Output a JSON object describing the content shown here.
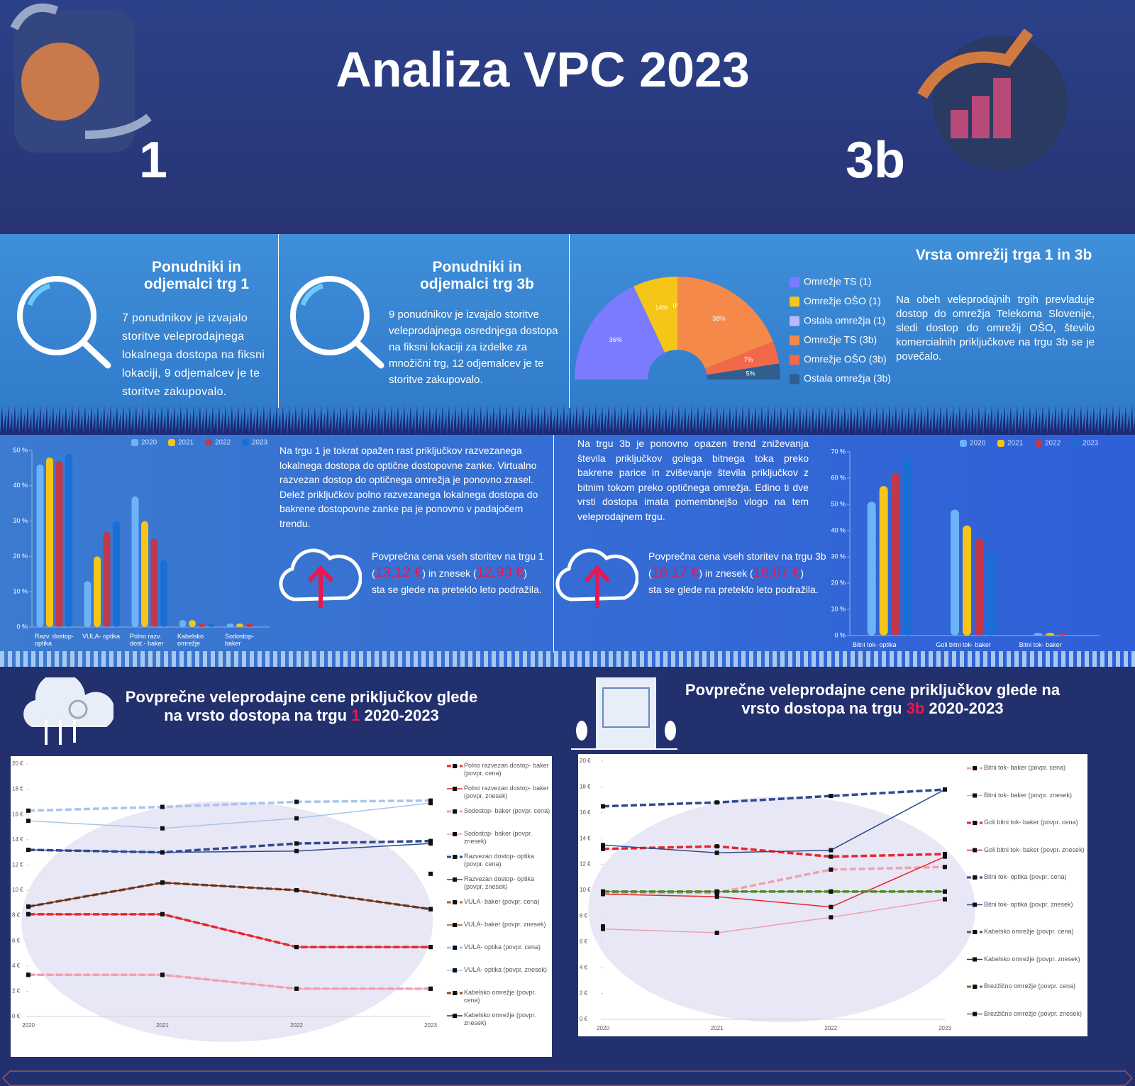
{
  "header": {
    "title": "Analiza VPC 2023",
    "left_label": "1",
    "right_label": "3b"
  },
  "panels": [
    {
      "title": "Ponudniki in odjemalci trg 1",
      "text": "7 ponudnikov je izvajalo storitve veleprodajnega lokalnega dostopa na fiksni lokaciji, 9 odjemalcev je te storitve zakupovalo."
    },
    {
      "title": "Ponudniki in odjemalci trg 3b",
      "text": "9 ponudnikov je izvajalo storitve veleprodajnega osrednjega dostopa na fiksni lokaciji za izdelke za množični trg, 12 odjemalcev je te storitve zakupovalo."
    }
  ],
  "network": {
    "text": "Na obeh veleprodajnih trgih prevladuje dostop do omrežja Telekoma Slovenije, sledi dostop do omrežij OŠO, število komercialnih priključkove na trgu 3b se je povečalo."
  },
  "markets": [
    {
      "text": "Na trgu 1 je tokrat opažen rast priključkov razvezanega lokalnega dostopa do optične dostopovne zanke. Virtualno razvezan dostop do optičnega omrežja je ponovno zrasel. Delež priključkov polno razvezanega lokalnega dostopa do bakrene dostopovne zanke pa je ponovno v padajočem trendu.",
      "price_intro": "Povprečna cena vseh storitev na trgu 1",
      "price_parts": [
        "(",
        "13,12 €",
        ") in znesek (",
        "12,93 €",
        ")"
      ],
      "price_outro": "sta se glede na preteklo leto podražila."
    },
    {
      "text": "Na trgu 3b je ponovno opazen trend zniževanja števila priključkov golega bitnega toka preko bakrene parice in zviševanje števila priključkov z bitnim tokom preko optičnega omrežja. Edino ti dve vrsti dostopa imata pomembnejšo vlogo na tem veleprodajnem trgu.",
      "price_intro": "Povprečna cena vseh storitev na trgu 3b",
      "price_parts": [
        "(",
        "16,17 €",
        ") in znesek (",
        "16,07 €",
        ")"
      ],
      "price_outro": "sta se glede na preteklo leto podražila."
    }
  ],
  "chart_data": [
    {
      "type": "pie",
      "title": "Vrsta omrežij trga 1 in 3b",
      "categories": [
        "Omrežje TS (1)",
        "Omrežje OŠO (1)",
        "Ostala omrežja (1)",
        "Omrežje TS (3b)",
        "Omrežje OŠO (3b)",
        "Ostala omrežja (3b)"
      ],
      "values": [
        36,
        14,
        0,
        38,
        7,
        5
      ],
      "value_labels": [
        "36%",
        "14%",
        "0%",
        "38%",
        "7%",
        "5%"
      ],
      "colors": [
        "#7b7bff",
        "#f5c518",
        "#b8b8ff",
        "#f5894a",
        "#f2694a",
        "#2f5f8e"
      ]
    },
    {
      "type": "bar",
      "categories": [
        "Razv. dostop- optika",
        "VULA- optika",
        "Polno razv. dost.- baker",
        "Kabelsko omrežje",
        "Sodostop- baker"
      ],
      "series": [
        {
          "name": "2020",
          "color": "#6cb4f7",
          "values": [
            46,
            13,
            37,
            2,
            1
          ]
        },
        {
          "name": "2021",
          "color": "#f5c518",
          "values": [
            48,
            20,
            30,
            2,
            1
          ]
        },
        {
          "name": "2022",
          "color": "#c0394b",
          "values": [
            47,
            27,
            25,
            1,
            1
          ]
        },
        {
          "name": "2023",
          "color": "#1a6fd6",
          "values": [
            49,
            30,
            19,
            1,
            0
          ]
        }
      ],
      "ylim": [
        0,
        50
      ],
      "yticks": [
        {
          "value": 0,
          "label": "0 %"
        },
        {
          "value": 10,
          "label": "10 %"
        },
        {
          "value": 20,
          "label": "20 %"
        },
        {
          "value": 30,
          "label": "30 %"
        },
        {
          "value": 40,
          "label": "40 %"
        },
        {
          "value": 50,
          "label": "50 %"
        }
      ]
    },
    {
      "type": "bar",
      "categories": [
        "Bitni tok- optika",
        "Goli bitni tok- baker",
        "Bitni tok- baker"
      ],
      "series": [
        {
          "name": "2020",
          "color": "#6cb4f7",
          "values": [
            51,
            48,
            1
          ]
        },
        {
          "name": "2021",
          "color": "#f5c518",
          "values": [
            57,
            42,
            1
          ]
        },
        {
          "name": "2022",
          "color": "#c0394b",
          "values": [
            62,
            37,
            1
          ]
        },
        {
          "name": "2023",
          "color": "#1a6fd6",
          "values": [
            68,
            31,
            0
          ]
        }
      ],
      "ylim": [
        0,
        70
      ],
      "yticks": [
        {
          "value": 0,
          "label": "0 %"
        },
        {
          "value": 10,
          "label": "10 %"
        },
        {
          "value": 20,
          "label": "20 %"
        },
        {
          "value": 30,
          "label": "30 %"
        },
        {
          "value": 40,
          "label": "40 %"
        },
        {
          "value": 50,
          "label": "50 %"
        },
        {
          "value": 60,
          "label": "60 %"
        },
        {
          "value": 70,
          "label": "70 %"
        }
      ]
    },
    {
      "type": "line",
      "title_parts": [
        "Povprečne veleprodajne cene priključkov glede na vrsto dostopa na trgu ",
        "1",
        " 2020-2023"
      ],
      "x": [
        2020,
        2021,
        2022,
        2023
      ],
      "xlim": [
        2020,
        2023
      ],
      "series": [
        {
          "name": "Polno razvezan dostop- baker (povpr. cena)",
          "color": "#e8262c",
          "dashed": true,
          "values": [
            8.1,
            8.1,
            5.5,
            5.5
          ]
        },
        {
          "name": "Polno razvezan dostop- baker (povpr. znesek)",
          "color": "#e8262c",
          "dashed": false,
          "values": [
            8.1,
            8.1,
            5.5,
            5.5
          ]
        },
        {
          "name": "Sodostop- baker (povpr. cena)",
          "color": "#f0a0b0",
          "dashed": true,
          "values": [
            3.3,
            3.3,
            2.2,
            2.2
          ]
        },
        {
          "name": "Sodostop- baker (povpr. znesek)",
          "color": "#f0a0b0",
          "dashed": false,
          "values": [
            3.3,
            3.3,
            2.2,
            2.2
          ]
        },
        {
          "name": "Razvezan dostop- optika (povpr. cena)",
          "color": "#2e4a8f",
          "dashed": true,
          "values": [
            13.2,
            13.0,
            13.7,
            13.9
          ]
        },
        {
          "name": "Razvezan dostop- optika (povpr. znesek)",
          "color": "#2e4a8f",
          "dashed": false,
          "values": [
            13.2,
            13.0,
            13.1,
            13.7
          ]
        },
        {
          "name": "VULA- baker (povpr. cena)",
          "color": "#c0603a",
          "dashed": true,
          "values": [
            null,
            null,
            null,
            11.3
          ]
        },
        {
          "name": "VULA- baker (povpr. znesek)",
          "color": "#a0523a",
          "dashed": false,
          "values": [
            8.7,
            10.6,
            10.0,
            8.5
          ]
        },
        {
          "name": "VULA- optika (povpr. cena)",
          "color": "#a9c4ea",
          "dashed": true,
          "values": [
            16.3,
            16.6,
            17.0,
            17.1
          ]
        },
        {
          "name": "VULA- optika (povpr. znesek)",
          "color": "#a9c4ea",
          "dashed": false,
          "values": [
            15.5,
            14.9,
            15.7,
            16.9
          ]
        },
        {
          "name": "Kabelsko omrežje (povpr. cena)",
          "color": "#8b4a2a",
          "dashed": true,
          "values": [
            8.7,
            10.6,
            10.0,
            8.5
          ]
        },
        {
          "name": "Kabelsko omrežje (povpr. znesek)",
          "color": "#5a2e1a",
          "dashed": false,
          "values": [
            8.7,
            10.6,
            10.0,
            8.5
          ]
        }
      ],
      "ylim": [
        0,
        20
      ],
      "yticks": [
        {
          "value": 0,
          "label": "0 €"
        },
        {
          "value": 2,
          "label": "2 €"
        },
        {
          "value": 4,
          "label": "4 €"
        },
        {
          "value": 6,
          "label": "6 €"
        },
        {
          "value": 8,
          "label": "8 €"
        },
        {
          "value": 10,
          "label": "10 €"
        },
        {
          "value": 12,
          "label": "12 €"
        },
        {
          "value": 14,
          "label": "14 €"
        },
        {
          "value": 16,
          "label": "16 €"
        },
        {
          "value": 18,
          "label": "18 €"
        },
        {
          "value": 20,
          "label": "20 €"
        }
      ]
    },
    {
      "type": "line",
      "title_parts": [
        "Povprečne veleprodajne cene priključkov glede na vrsto dostopa na trgu ",
        "3b",
        " 2020-2023"
      ],
      "x": [
        2020,
        2021,
        2022,
        2023
      ],
      "xlim": [
        2020,
        2023
      ],
      "series": [
        {
          "name": "Bitni tok- baker (povpr. cena)",
          "color": "#f0a0b0",
          "dashed": true,
          "values": [
            9.8,
            9.8,
            11.6,
            11.8
          ]
        },
        {
          "name": "Bitni tok- baker (povpr. znesek)",
          "color": "#f0a0b0",
          "dashed": false,
          "values": [
            7.0,
            6.7,
            7.9,
            9.3
          ]
        },
        {
          "name": "Goli bitni tok- baker (povpr. cena)",
          "color": "#e8262c",
          "dashed": true,
          "values": [
            13.2,
            13.4,
            12.6,
            12.8
          ]
        },
        {
          "name": "Goli bitni tok- baker (povpr. znesek)",
          "color": "#e8262c",
          "dashed": false,
          "values": [
            9.7,
            9.5,
            8.7,
            12.6
          ]
        },
        {
          "name": "Bitni tok- optika (povpr. cena)",
          "color": "#2e4a8f",
          "dashed": true,
          "values": [
            16.5,
            16.8,
            17.3,
            17.8
          ]
        },
        {
          "name": "Bitni tok- optika (povpr. znesek)",
          "color": "#2e4a8f",
          "dashed": false,
          "values": [
            13.5,
            12.9,
            13.1,
            17.8
          ]
        },
        {
          "name": "Kabelsko omrežje (povpr. cena)",
          "color": "#8b4a2a",
          "dashed": true,
          "values": [
            7.2,
            null,
            null,
            null
          ]
        },
        {
          "name": "Kabelsko omrežje (povpr. znesek)",
          "color": "#5a2e1a",
          "dashed": false,
          "values": [
            7.1,
            null,
            null,
            null
          ]
        },
        {
          "name": "Brezžično omrežje (povpr. cena)",
          "color": "#4a8a2a",
          "dashed": true,
          "values": [
            9.9,
            9.9,
            9.9,
            9.9
          ]
        },
        {
          "name": "Brezžično omrežje (povpr. znesek)",
          "color": "#4a8a2a",
          "dashed": false,
          "values": [
            9.9,
            9.9,
            9.9,
            9.9
          ]
        }
      ],
      "ylim": [
        0,
        20
      ],
      "yticks": [
        {
          "value": 0,
          "label": "0 €"
        },
        {
          "value": 2,
          "label": "2 €"
        },
        {
          "value": 4,
          "label": "4 €"
        },
        {
          "value": 6,
          "label": "6 €"
        },
        {
          "value": 8,
          "label": "8 €"
        },
        {
          "value": 10,
          "label": "10 €"
        },
        {
          "value": 12,
          "label": "12 €"
        },
        {
          "value": 14,
          "label": "14 €"
        },
        {
          "value": 16,
          "label": "16 €"
        },
        {
          "value": 18,
          "label": "18 €"
        },
        {
          "value": 20,
          "label": "20 €"
        }
      ]
    }
  ]
}
